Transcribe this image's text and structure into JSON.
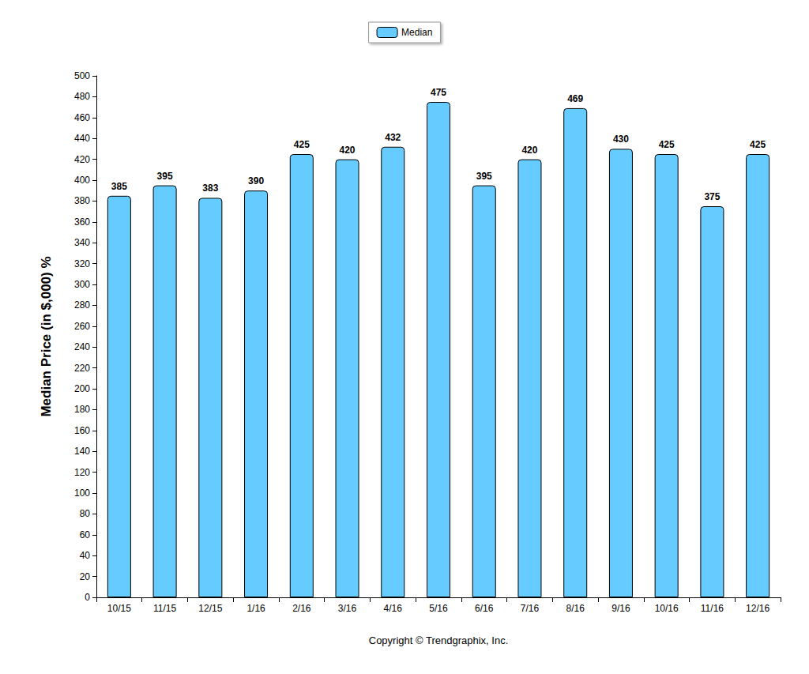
{
  "chart_data": {
    "type": "bar",
    "y_label": "Median Price (in $,000) %",
    "categories": [
      "10/15",
      "11/15",
      "12/15",
      "1/16",
      "2/16",
      "3/16",
      "4/16",
      "5/16",
      "6/16",
      "7/16",
      "8/16",
      "9/16",
      "10/16",
      "11/16",
      "12/16"
    ],
    "series": [
      {
        "name": "Median",
        "color": "#66ccff",
        "values": [
          385,
          395,
          383,
          390,
          425,
          420,
          432,
          475,
          395,
          420,
          469,
          430,
          425,
          375,
          425
        ]
      }
    ],
    "ylim": [
      0,
      500
    ],
    "yticks": [
      0,
      20,
      40,
      60,
      80,
      100,
      120,
      140,
      160,
      180,
      200,
      220,
      240,
      260,
      280,
      300,
      320,
      340,
      360,
      380,
      400,
      420,
      440,
      460,
      480,
      500
    ],
    "grid": false,
    "legend": "top",
    "data_labels": true,
    "annotations": [
      "Copyright © Trendgraphix, Inc."
    ]
  }
}
